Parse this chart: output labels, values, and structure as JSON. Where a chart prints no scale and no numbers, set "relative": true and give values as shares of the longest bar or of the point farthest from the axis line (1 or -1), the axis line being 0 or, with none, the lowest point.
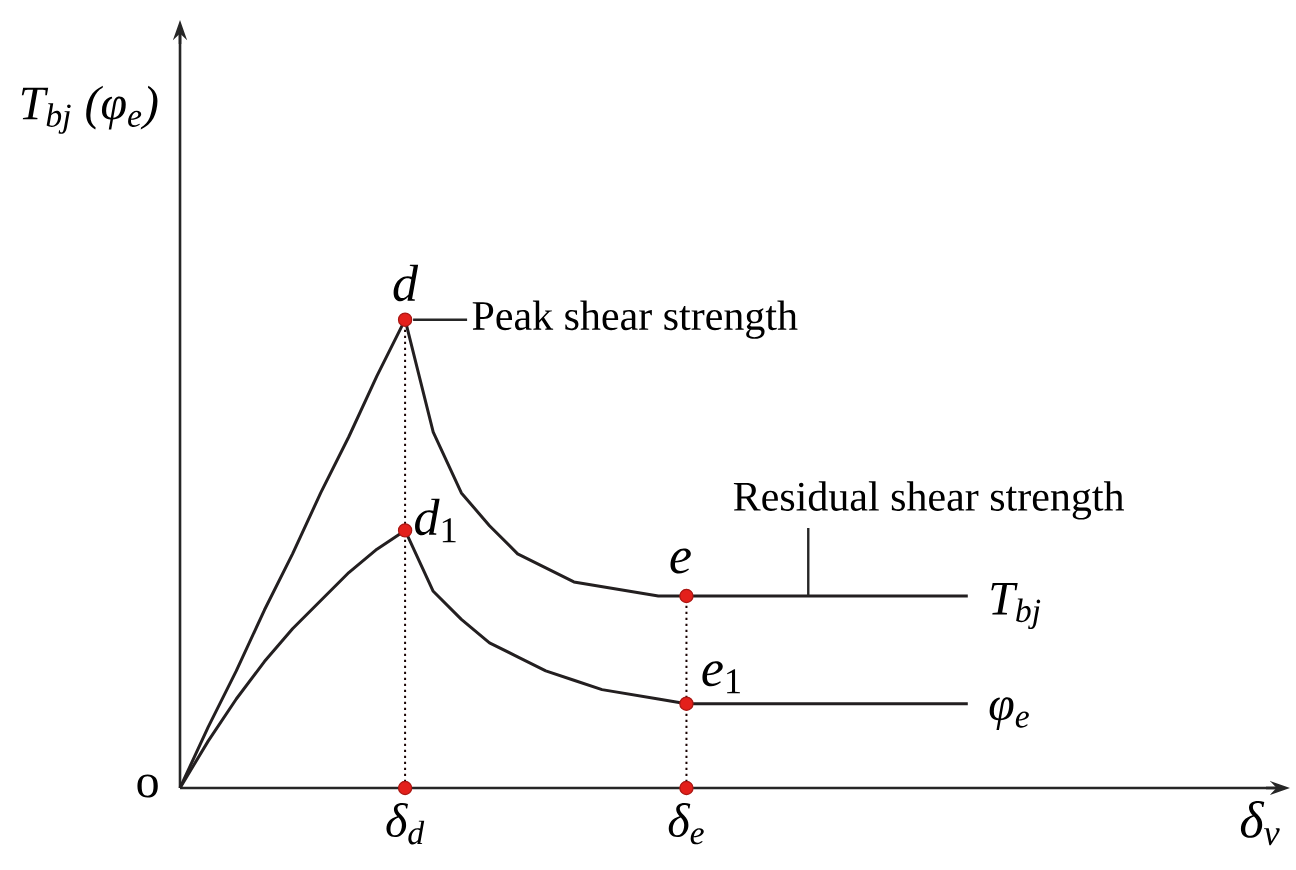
{
  "chart_data": {
    "type": "line",
    "relative": true,
    "xlabel": "δ$_{v}$",
    "ylabel": "T$_{bj}$ (φ$_{e}$)",
    "categories": [
      null,
      null,
      null,
      null,
      null,
      null,
      null,
      null,
      "δ$_{d}$",
      null,
      null,
      null,
      null,
      null,
      null,
      null,
      null,
      null,
      "δ$_{e}$",
      null,
      null,
      null,
      null,
      null,
      null,
      null,
      null,
      null,
      null
    ],
    "series": [
      {
        "name": "T$_{bj}$",
        "color": "#231f20",
        "values": [
          0,
          0.13,
          0.25,
          0.38,
          0.5,
          0.63,
          0.75,
          0.88,
          1,
          0.76,
          0.63,
          0.56,
          0.5,
          0.47,
          0.44,
          0.43,
          0.42,
          0.41,
          0.41,
          0.41,
          0.41,
          0.41,
          0.41,
          0.41,
          0.41,
          0.41,
          0.41,
          0.41,
          0.41
        ]
      },
      {
        "name": "φ$_{e}$",
        "color": "#231f20",
        "values": [
          0,
          0.1,
          0.19,
          0.27,
          0.34,
          0.4,
          0.46,
          0.51,
          0.55,
          0.42,
          0.36,
          0.31,
          0.28,
          0.25,
          0.23,
          0.21,
          0.2,
          0.19,
          0.18,
          0.18,
          0.18,
          0.18,
          0.18,
          0.18,
          0.18,
          0.18,
          0.18,
          0.18,
          0.18
        ]
      },
      {
        "type": "lollipop",
        "line_style": "dotted",
        "marker": "circle",
        "color": "#e3201b",
        "values": [
          null,
          null,
          null,
          null,
          null,
          null,
          null,
          null,
          1,
          null,
          null,
          null,
          null,
          null,
          null,
          null,
          null,
          null,
          0.41,
          null,
          null,
          null,
          null,
          null,
          null,
          null,
          null,
          null,
          null
        ]
      },
      {
        "type": "scatter",
        "marker": "circle",
        "color": "#e3201b",
        "values": [
          null,
          null,
          null,
          null,
          null,
          null,
          null,
          null,
          0.55,
          null,
          null,
          null,
          null,
          null,
          null,
          null,
          null,
          null,
          0.18,
          null,
          null,
          null,
          null,
          null,
          null,
          null,
          null,
          null,
          null
        ]
      },
      {
        "type": "scatter",
        "marker": "circle",
        "color": "#e3201b",
        "values": [
          null,
          null,
          null,
          null,
          null,
          null,
          null,
          null,
          0,
          null,
          null,
          null,
          null,
          null,
          null,
          null,
          null,
          null,
          0,
          null,
          null,
          null,
          null,
          null,
          null,
          null,
          null,
          null,
          null
        ]
      }
    ],
    "annotations": [
      "o",
      {
        "text": "*d*",
        "x": "δ$_{d}$",
        "y": 1
      },
      {
        "text": "*d*$_{1}$",
        "x": "δ$_{d}$",
        "y": 0.55
      },
      {
        "text": "*e*",
        "x": "δ$_{e}$",
        "y": 0.41
      },
      {
        "text": "*e*$_{1}$",
        "x": "δ$_{e}$",
        "y": 0.18
      },
      {
        "text": "Peak shear strength",
        "x": "δ$_{d}$",
        "y": 1
      },
      {
        "text": "Residual shear strength",
        "y": 0.41
      }
    ]
  }
}
